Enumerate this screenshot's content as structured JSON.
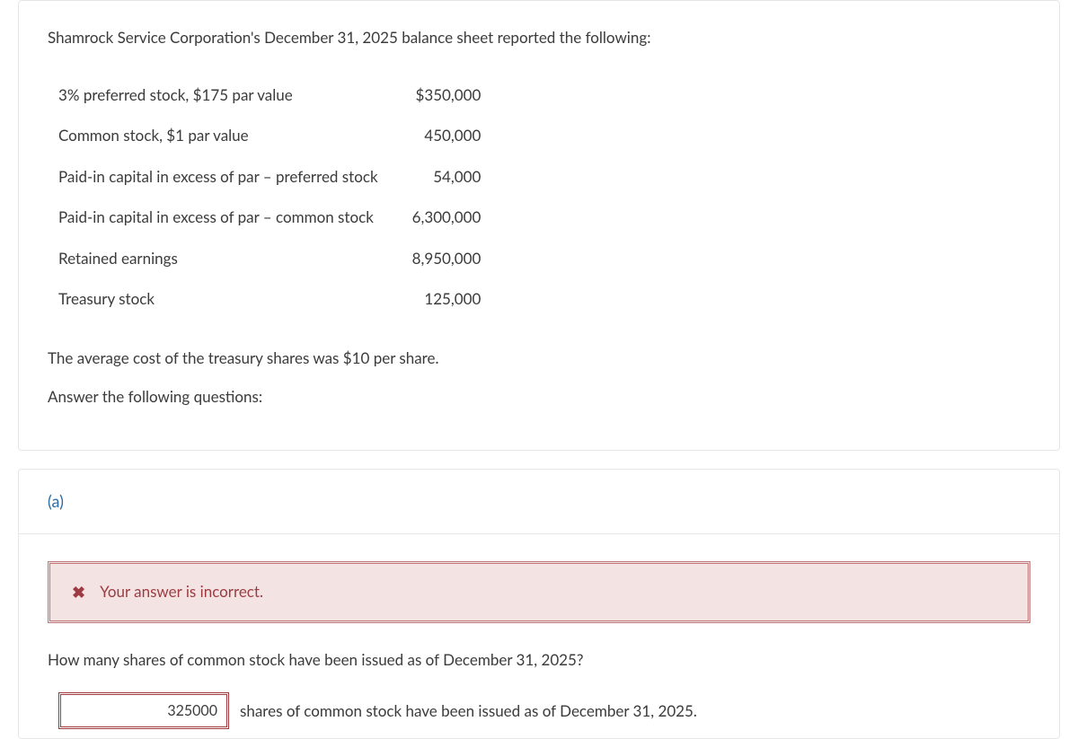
{
  "intro": "Shamrock Service Corporation's December 31, 2025 balance sheet reported the following:",
  "balance_sheet": {
    "rows": [
      {
        "label": "3% preferred stock, $175 par value",
        "value": "$350,000"
      },
      {
        "label": "Common stock, $1 par value",
        "value": "450,000"
      },
      {
        "label": "Paid-in capital in excess of par – preferred stock",
        "value": "54,000"
      },
      {
        "label": "Paid-in capital in excess of par – common stock",
        "value": "6,300,000"
      },
      {
        "label": "Retained earnings",
        "value": "8,950,000"
      },
      {
        "label": "Treasury stock",
        "value": "125,000"
      }
    ]
  },
  "note": "The average cost of the treasury shares was $10 per share.",
  "prompt": "Answer the following questions:",
  "part": {
    "label": "(a)",
    "feedback": {
      "icon": "✖",
      "text": "Your answer is incorrect."
    },
    "question": "How many shares of common stock have been issued as of December 31, 2025?",
    "answer_value": "325000",
    "answer_suffix": "shares of common stock have been issued as of December 31, 2025."
  },
  "colors": {
    "text": "#3b3b3b",
    "border": "#e6e6e6",
    "link": "#2e6da4",
    "alert_bg": "#f4e3e3",
    "alert_border": "#c0787b",
    "alert_text": "#9c3c42",
    "input_border": "#a03a3e"
  }
}
